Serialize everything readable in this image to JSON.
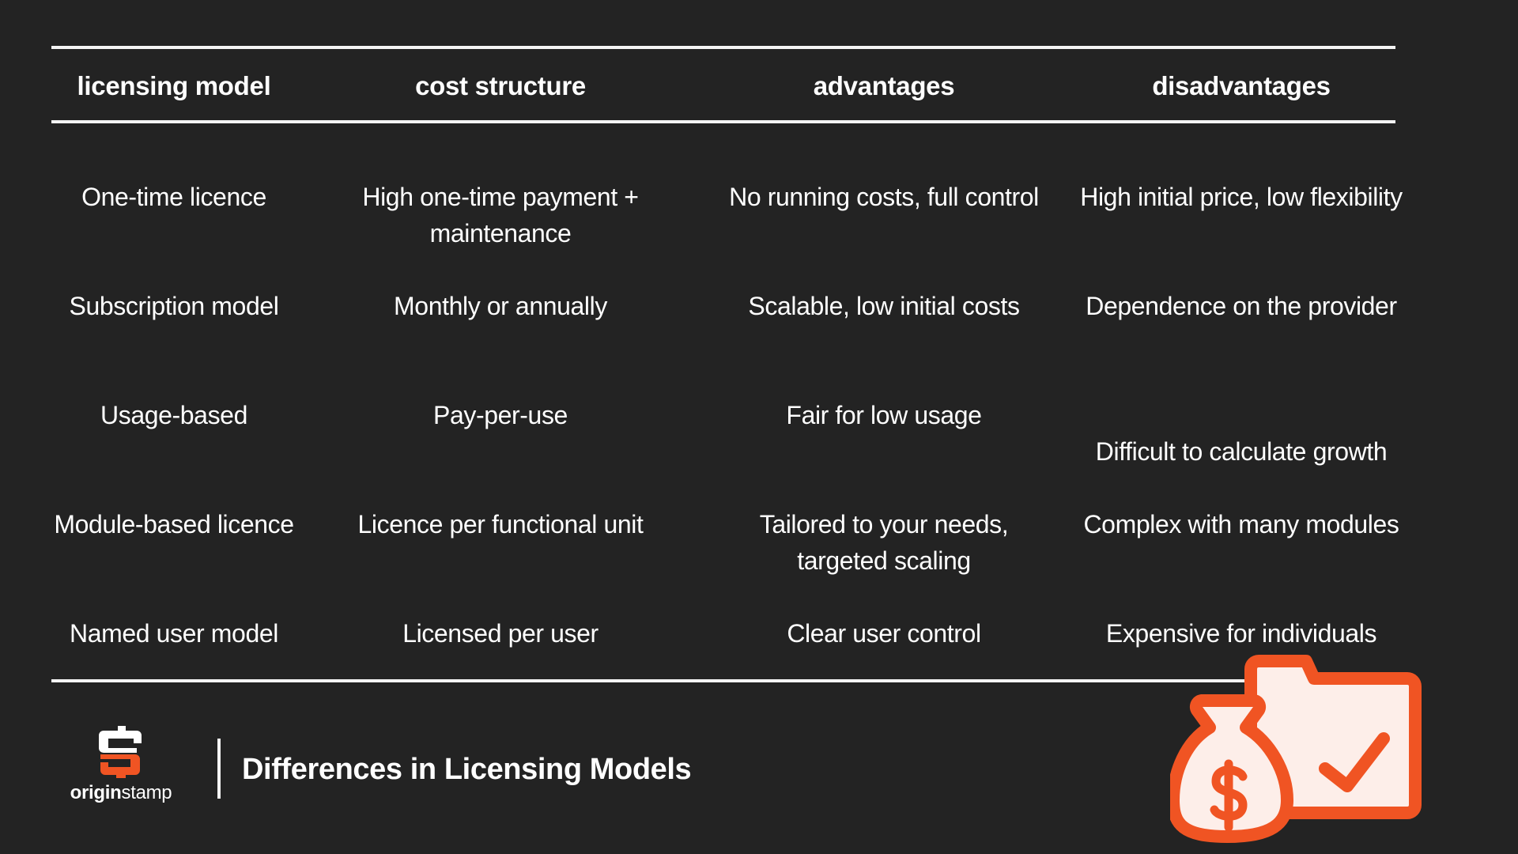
{
  "table": {
    "headers": [
      "licensing model",
      "cost structure",
      "advantages",
      "disadvantages"
    ],
    "rows": [
      [
        "One-time licence",
        "High one-time payment + maintenance",
        "No running costs, full control",
        "High initial price, low flexibility"
      ],
      [
        "Subscription model",
        "Monthly or annually",
        "Scalable, low initial costs",
        "Dependence on the provider"
      ],
      [
        "Usage-based",
        "Pay-per-use",
        "Fair for low usage",
        "Difficult to calculate growth"
      ],
      [
        "Module-based licence",
        "Licence per functional unit",
        "Tailored to your needs, targeted scaling",
        "Complex with many modules"
      ],
      [
        "Named user model",
        "Licensed per user",
        "Clear user control",
        "Expensive for  individuals"
      ]
    ]
  },
  "footer": {
    "logo": {
      "brand_bold": "origin",
      "brand_light": "stamp"
    },
    "title": "Differences in Licensing Models"
  },
  "illustration": {
    "icons": [
      "money-bag-icon",
      "folder-check-icon"
    ]
  },
  "colors": {
    "background": "#232323",
    "accent": "#f05423",
    "light_fill": "#fdeee9",
    "text": "#ffffff"
  }
}
